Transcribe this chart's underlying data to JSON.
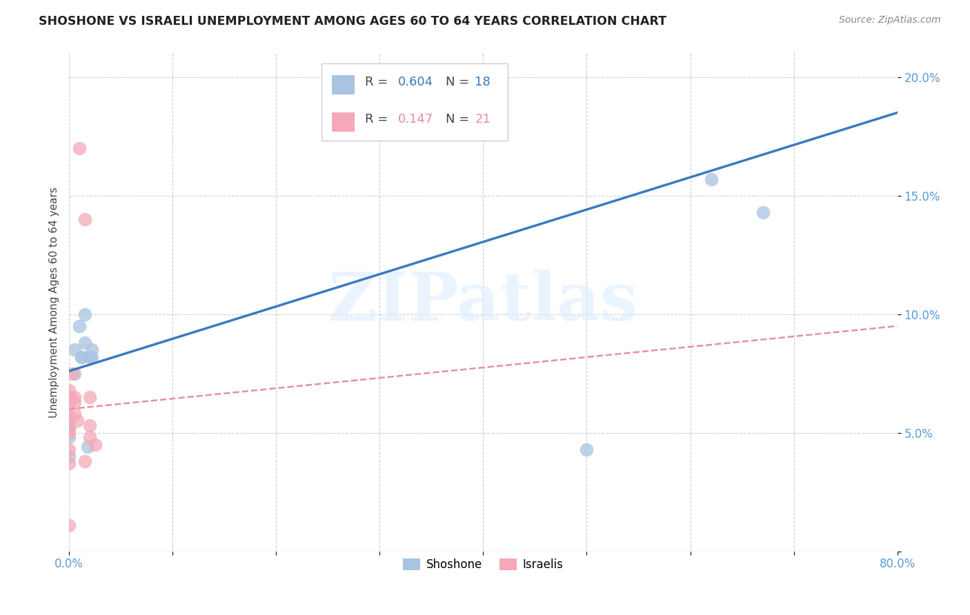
{
  "title": "SHOSHONE VS ISRAELI UNEMPLOYMENT AMONG AGES 60 TO 64 YEARS CORRELATION CHART",
  "source": "Source: ZipAtlas.com",
  "ylabel": "Unemployment Among Ages 60 to 64 years",
  "xlim": [
    0.0,
    0.8
  ],
  "ylim": [
    0.0,
    0.21
  ],
  "xtick_positions": [
    0.0,
    0.1,
    0.2,
    0.3,
    0.4,
    0.5,
    0.6,
    0.7,
    0.8
  ],
  "xticklabels": [
    "0.0%",
    "",
    "",
    "",
    "",
    "",
    "",
    "",
    "80.0%"
  ],
  "ytick_positions": [
    0.0,
    0.05,
    0.1,
    0.15,
    0.2
  ],
  "yticklabels": [
    "",
    "5.0%",
    "10.0%",
    "15.0%",
    "20.0%"
  ],
  "shoshone_color": "#a8c4e0",
  "israeli_color": "#f4a8b8",
  "shoshone_line_color": "#3a7abf",
  "israeli_line_color": "#e8909a",
  "R_shoshone": "0.604",
  "N_shoshone": "18",
  "R_israeli": "0.147",
  "N_israeli": "21",
  "legend_label_shoshone": "Shoshone",
  "legend_label_israeli": "Israelis",
  "watermark": "ZIPatlas",
  "tick_color": "#5b9bd5",
  "shoshone_x": [
    0.0,
    0.0,
    0.0,
    0.0,
    0.005,
    0.005,
    0.01,
    0.012,
    0.012,
    0.015,
    0.015,
    0.018,
    0.02,
    0.022,
    0.022,
    0.5,
    0.62,
    0.67
  ],
  "shoshone_y": [
    0.055,
    0.052,
    0.048,
    0.04,
    0.085,
    0.075,
    0.095,
    0.082,
    0.082,
    0.1,
    0.088,
    0.044,
    0.082,
    0.085,
    0.082,
    0.043,
    0.157,
    0.143
  ],
  "israeli_x": [
    0.0,
    0.0,
    0.0,
    0.0,
    0.0,
    0.0,
    0.0,
    0.0,
    0.0,
    0.003,
    0.005,
    0.005,
    0.005,
    0.008,
    0.01,
    0.015,
    0.015,
    0.02,
    0.02,
    0.02,
    0.025
  ],
  "israeli_y": [
    0.068,
    0.065,
    0.062,
    0.057,
    0.052,
    0.05,
    0.043,
    0.037,
    0.011,
    0.075,
    0.065,
    0.063,
    0.058,
    0.055,
    0.17,
    0.14,
    0.038,
    0.065,
    0.053,
    0.048,
    0.045
  ],
  "shoshone_line_x": [
    0.0,
    0.8
  ],
  "shoshone_line_y": [
    0.076,
    0.185
  ],
  "israeli_line_x": [
    0.0,
    0.8
  ],
  "israeli_line_y": [
    0.06,
    0.095
  ]
}
